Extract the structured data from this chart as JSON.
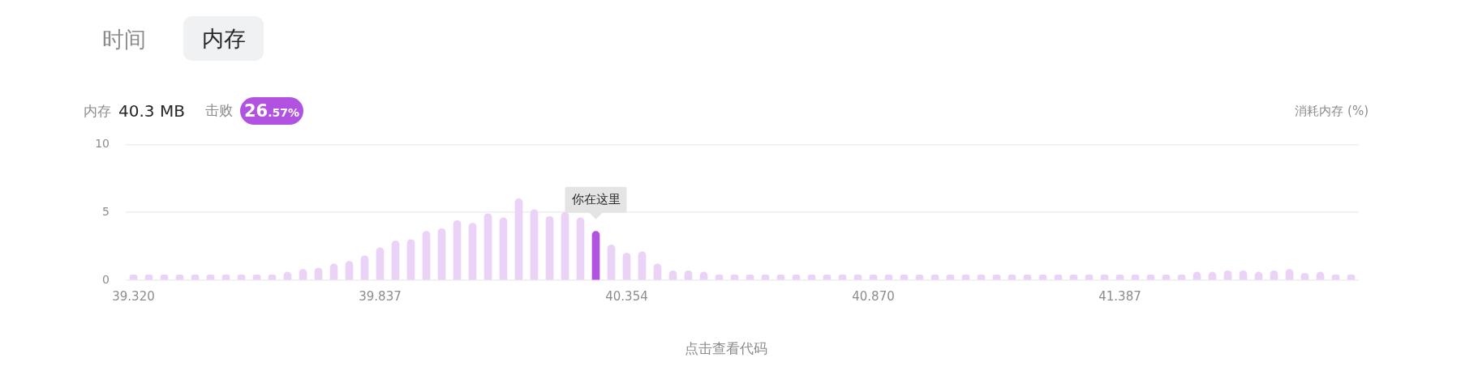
{
  "chart_data": {
    "type": "bar",
    "ylabel": "消耗内存 (%)",
    "annotations": [
      "时间",
      "内存",
      "内存",
      "40.3 MB",
      "击败",
      "26.57%",
      "你在这里",
      "点击查看代码"
    ],
    "categories": [
      "39.320",
      null,
      null,
      null,
      null,
      null,
      null,
      null,
      null,
      null,
      null,
      null,
      null,
      null,
      null,
      null,
      "39.837",
      null,
      null,
      null,
      null,
      null,
      null,
      null,
      null,
      null,
      null,
      null,
      null,
      null,
      null,
      null,
      "40.354",
      null,
      null,
      null,
      null,
      null,
      null,
      null,
      null,
      null,
      null,
      null,
      null,
      null,
      null,
      null,
      "40.870",
      null,
      null,
      null,
      null,
      null,
      null,
      null,
      null,
      null,
      null,
      null,
      null,
      null,
      null,
      null,
      "41.387",
      null,
      null,
      null,
      null,
      null,
      null,
      null,
      null,
      null,
      null,
      null,
      null,
      null,
      null,
      null
    ],
    "values": [
      0.4,
      0.4,
      0.4,
      0.4,
      0.4,
      0.4,
      0.4,
      0.4,
      0.4,
      0.4,
      0.6,
      0.8,
      0.9,
      1.2,
      1.4,
      1.8,
      2.4,
      2.9,
      3.0,
      3.6,
      3.8,
      4.4,
      4.2,
      4.9,
      4.6,
      6.0,
      5.2,
      4.7,
      5.0,
      4.6,
      3.6,
      2.6,
      2.0,
      2.1,
      1.2,
      0.7,
      0.7,
      0.6,
      0.4,
      0.4,
      0.4,
      0.4,
      0.4,
      0.4,
      0.4,
      0.4,
      0.4,
      0.4,
      0.4,
      0.4,
      0.4,
      0.4,
      0.4,
      0.4,
      0.4,
      0.4,
      0.4,
      0.4,
      0.4,
      0.4,
      0.4,
      0.4,
      0.4,
      0.4,
      0.4,
      0.4,
      0.4,
      0.4,
      0.4,
      0.6,
      0.6,
      0.7,
      0.7,
      0.6,
      0.7,
      0.8,
      0.5,
      0.6,
      0.4,
      0.4
    ],
    "colors": [
      "#ead3f7",
      "#ead3f7",
      "#ead3f7",
      "#ead3f7",
      "#ead3f7",
      "#ead3f7",
      "#ead3f7",
      "#ead3f7",
      "#ead3f7",
      "#ead3f7",
      "#ead3f7",
      "#ead3f7",
      "#ead3f7",
      "#ead3f7",
      "#ead3f7",
      "#ead3f7",
      "#ead3f7",
      "#ead3f7",
      "#ead3f7",
      "#ead3f7",
      "#ead3f7",
      "#ead3f7",
      "#ead3f7",
      "#ead3f7",
      "#ead3f7",
      "#ead3f7",
      "#ead3f7",
      "#ead3f7",
      "#ead3f7",
      "#ead3f7",
      "#b153e0",
      "#ead3f7",
      "#ead3f7",
      "#ead3f7",
      "#ead3f7",
      "#ead3f7",
      "#ead3f7",
      "#ead3f7",
      "#ead3f7",
      "#ead3f7",
      "#ead3f7",
      "#ead3f7",
      "#ead3f7",
      "#ead3f7",
      "#ead3f7",
      "#ead3f7",
      "#ead3f7",
      "#ead3f7",
      "#ead3f7",
      "#ead3f7",
      "#ead3f7",
      "#ead3f7",
      "#ead3f7",
      "#ead3f7",
      "#ead3f7",
      "#ead3f7",
      "#ead3f7",
      "#ead3f7",
      "#ead3f7",
      "#ead3f7",
      "#ead3f7",
      "#ead3f7",
      "#ead3f7",
      "#ead3f7",
      "#ead3f7",
      "#ead3f7",
      "#ead3f7",
      "#ead3f7",
      "#ead3f7",
      "#ead3f7",
      "#ead3f7",
      "#ead3f7",
      "#ead3f7",
      "#ead3f7",
      "#ead3f7",
      "#ead3f7",
      "#ead3f7",
      "#ead3f7",
      "#ead3f7",
      "#ead3f7"
    ],
    "ylim": [
      0,
      10
    ],
    "yticks": [
      0,
      5,
      10
    ],
    "grid": "y"
  }
}
